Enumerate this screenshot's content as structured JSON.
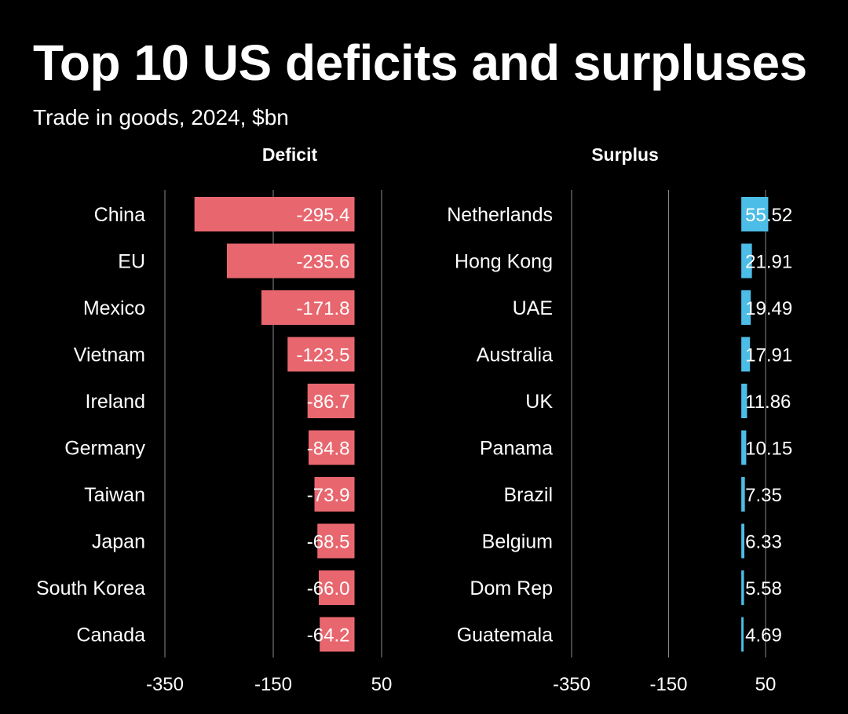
{
  "title": "Top 10 US deficits and surpluses",
  "subtitle": "Trade in goods, 2024, $bn",
  "colors": {
    "background": "#000000",
    "text": "#ffffff",
    "deficit_bar": "#e8676f",
    "surplus_bar": "#4cbde6",
    "gridline": "#8a8a8a"
  },
  "chart_data": [
    {
      "type": "bar",
      "orientation": "horizontal",
      "title": "Deficit",
      "categories": [
        "China",
        "EU",
        "Mexico",
        "Vietnam",
        "Ireland",
        "Germany",
        "Taiwan",
        "Japan",
        "South Korea",
        "Canada"
      ],
      "values": [
        -295.4,
        -235.6,
        -171.8,
        -123.5,
        -86.7,
        -84.8,
        -73.9,
        -68.5,
        -66.0,
        -64.2
      ],
      "value_labels": [
        "-295.4",
        "-235.6",
        "-171.8",
        "-123.5",
        "-86.7",
        "-84.8",
        "-73.9",
        "-68.5",
        "-66.0",
        "-64.2"
      ],
      "xlim": [
        -350,
        50
      ],
      "ticks": [
        -350,
        -150,
        50
      ],
      "tick_labels": [
        "-350",
        "-150",
        "50"
      ],
      "grid": true
    },
    {
      "type": "bar",
      "orientation": "horizontal",
      "title": "Surplus",
      "categories": [
        "Netherlands",
        "Hong Kong",
        "UAE",
        "Australia",
        "UK",
        "Panama",
        "Brazil",
        "Belgium",
        "Dom Rep",
        "Guatemala"
      ],
      "values": [
        55.52,
        21.91,
        19.49,
        17.91,
        11.86,
        10.15,
        7.35,
        6.33,
        5.58,
        4.69
      ],
      "value_labels": [
        "55.52",
        "21.91",
        "19.49",
        "17.91",
        "11.86",
        "10.15",
        "7.35",
        "6.33",
        "5.58",
        "4.69"
      ],
      "xlim": [
        -350,
        50
      ],
      "ticks": [
        -350,
        -150,
        50
      ],
      "tick_labels": [
        "-350",
        "-150",
        "50"
      ],
      "grid": true
    }
  ]
}
